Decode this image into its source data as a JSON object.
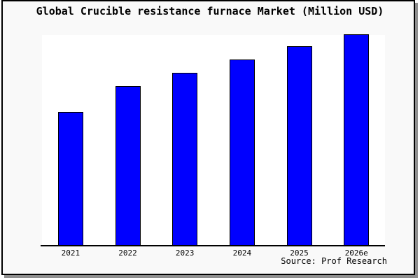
{
  "title": "Global Crucible resistance furnace Market (Million USD)",
  "source": "Source: Prof Research",
  "colors": {
    "figure_background": "#f9f9f9",
    "plot_background": "#ffffff",
    "bar_fill": "#0000ff",
    "bar_border": "#000000",
    "frame": "#000000",
    "shadow": "#8f8f8f",
    "text": "#000000"
  },
  "chart_data": {
    "type": "bar",
    "title": "Global Crucible resistance furnace Market (Million USD)",
    "categories": [
      "2021",
      "2022",
      "2023",
      "2024",
      "2025",
      "2026e"
    ],
    "values": [
      100,
      120,
      130,
      140,
      150,
      159
    ],
    "value_note": "No y-axis scale or data labels shown in chart; values are relative estimates from bar heights with 2021 = 100",
    "xlabel": "",
    "ylabel": "",
    "ylim": [
      0,
      159
    ],
    "grid": false,
    "legend": false,
    "y_axis_visible": false,
    "bar_color": "#0000ff",
    "bar_border_color": "#000000"
  }
}
